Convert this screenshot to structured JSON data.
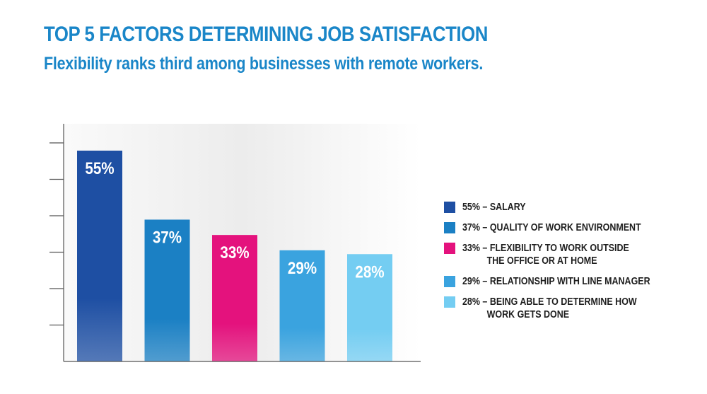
{
  "title": "TOP 5 FACTORS DETERMINING JOB SATISFACTION",
  "subtitle": "Flexibility ranks third among businesses with remote workers.",
  "chart_data": {
    "type": "bar",
    "categories": [
      "SALARY",
      "QUALITY OF WORK ENVIRONMENT",
      "FLEXIBILITY TO WORK OUTSIDE THE OFFICE OR AT HOME",
      "RELATIONSHIP WITH LINE MANAGER",
      "BEING ABLE TO DETERMINE HOW WORK GETS DONE"
    ],
    "values": [
      55,
      37,
      33,
      29,
      28
    ],
    "data_labels": [
      "55%",
      "37%",
      "33%",
      "29%",
      "28%"
    ],
    "colors": [
      "#1e4fa3",
      "#1b80c4",
      "#e4127d",
      "#3aa3df",
      "#74cdf2"
    ],
    "ylim": [
      0,
      62
    ],
    "grid": false,
    "legend_position": "right"
  },
  "legend": [
    {
      "text": "55% – SALARY"
    },
    {
      "text": "37% – QUALITY OF WORK ENVIRONMENT"
    },
    {
      "text": "33% – FLEXIBILITY TO WORK OUTSIDE\n          THE OFFICE OR AT HOME"
    },
    {
      "text": "29% – RELATIONSHIP WITH LINE MANAGER"
    },
    {
      "text": "28% – BEING ABLE TO DETERMINE HOW\n          WORK GETS DONE"
    }
  ]
}
